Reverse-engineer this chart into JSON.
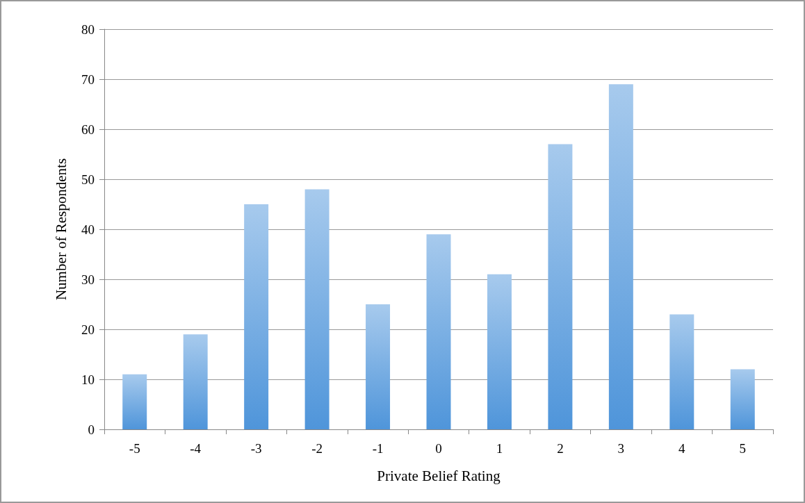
{
  "chart_data": {
    "type": "bar",
    "xlabel": "Private Belief Rating",
    "ylabel": "Number of Respondents",
    "categories": [
      "-5",
      "-4",
      "-3",
      "-2",
      "-1",
      "0",
      "1",
      "2",
      "3",
      "4",
      "5"
    ],
    "values": [
      11,
      19,
      45,
      48,
      25,
      39,
      31,
      57,
      69,
      23,
      12
    ],
    "color": "#4f95da",
    "ylim": [
      0,
      80
    ],
    "yticks": [
      0,
      10,
      20,
      30,
      40,
      50,
      60,
      70,
      80
    ],
    "grid": "y"
  }
}
